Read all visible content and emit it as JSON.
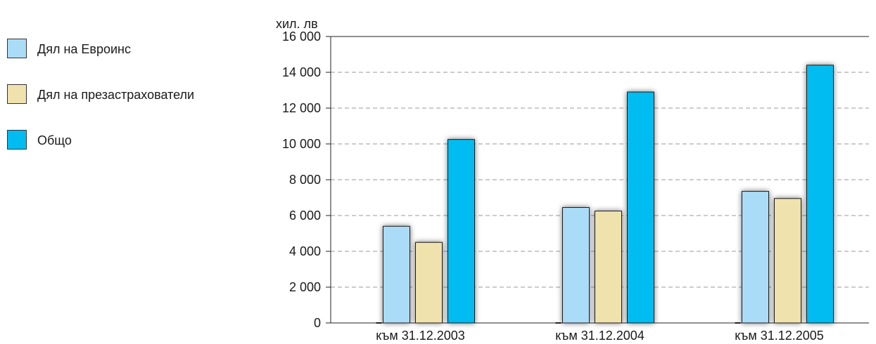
{
  "chart_data": {
    "type": "bar",
    "ylabel": "хил. лв",
    "categories": [
      "към 31.12.2003",
      "към 31.12.2004",
      "към 31.12.2005"
    ],
    "series": [
      {
        "name": "Дял на Евроинс",
        "color": "#abdcf7",
        "values": [
          5400,
          6450,
          7350
        ]
      },
      {
        "name": "Дял на презастрахователи",
        "color": "#f0e2ad",
        "values": [
          4500,
          6250,
          6950
        ]
      },
      {
        "name": "Общо",
        "color": "#00bcf1",
        "values": [
          10250,
          12900,
          14400
        ]
      }
    ],
    "ylim": [
      0,
      16000
    ],
    "yticks": [
      "0",
      "2 000",
      "4 000",
      "6 000",
      "8 000",
      "10 000",
      "12 000",
      "14 000",
      "16 000"
    ],
    "ytick_values": [
      0,
      2000,
      4000,
      6000,
      8000,
      10000,
      12000,
      14000,
      16000
    ],
    "grid": true,
    "legend_position": "left"
  }
}
